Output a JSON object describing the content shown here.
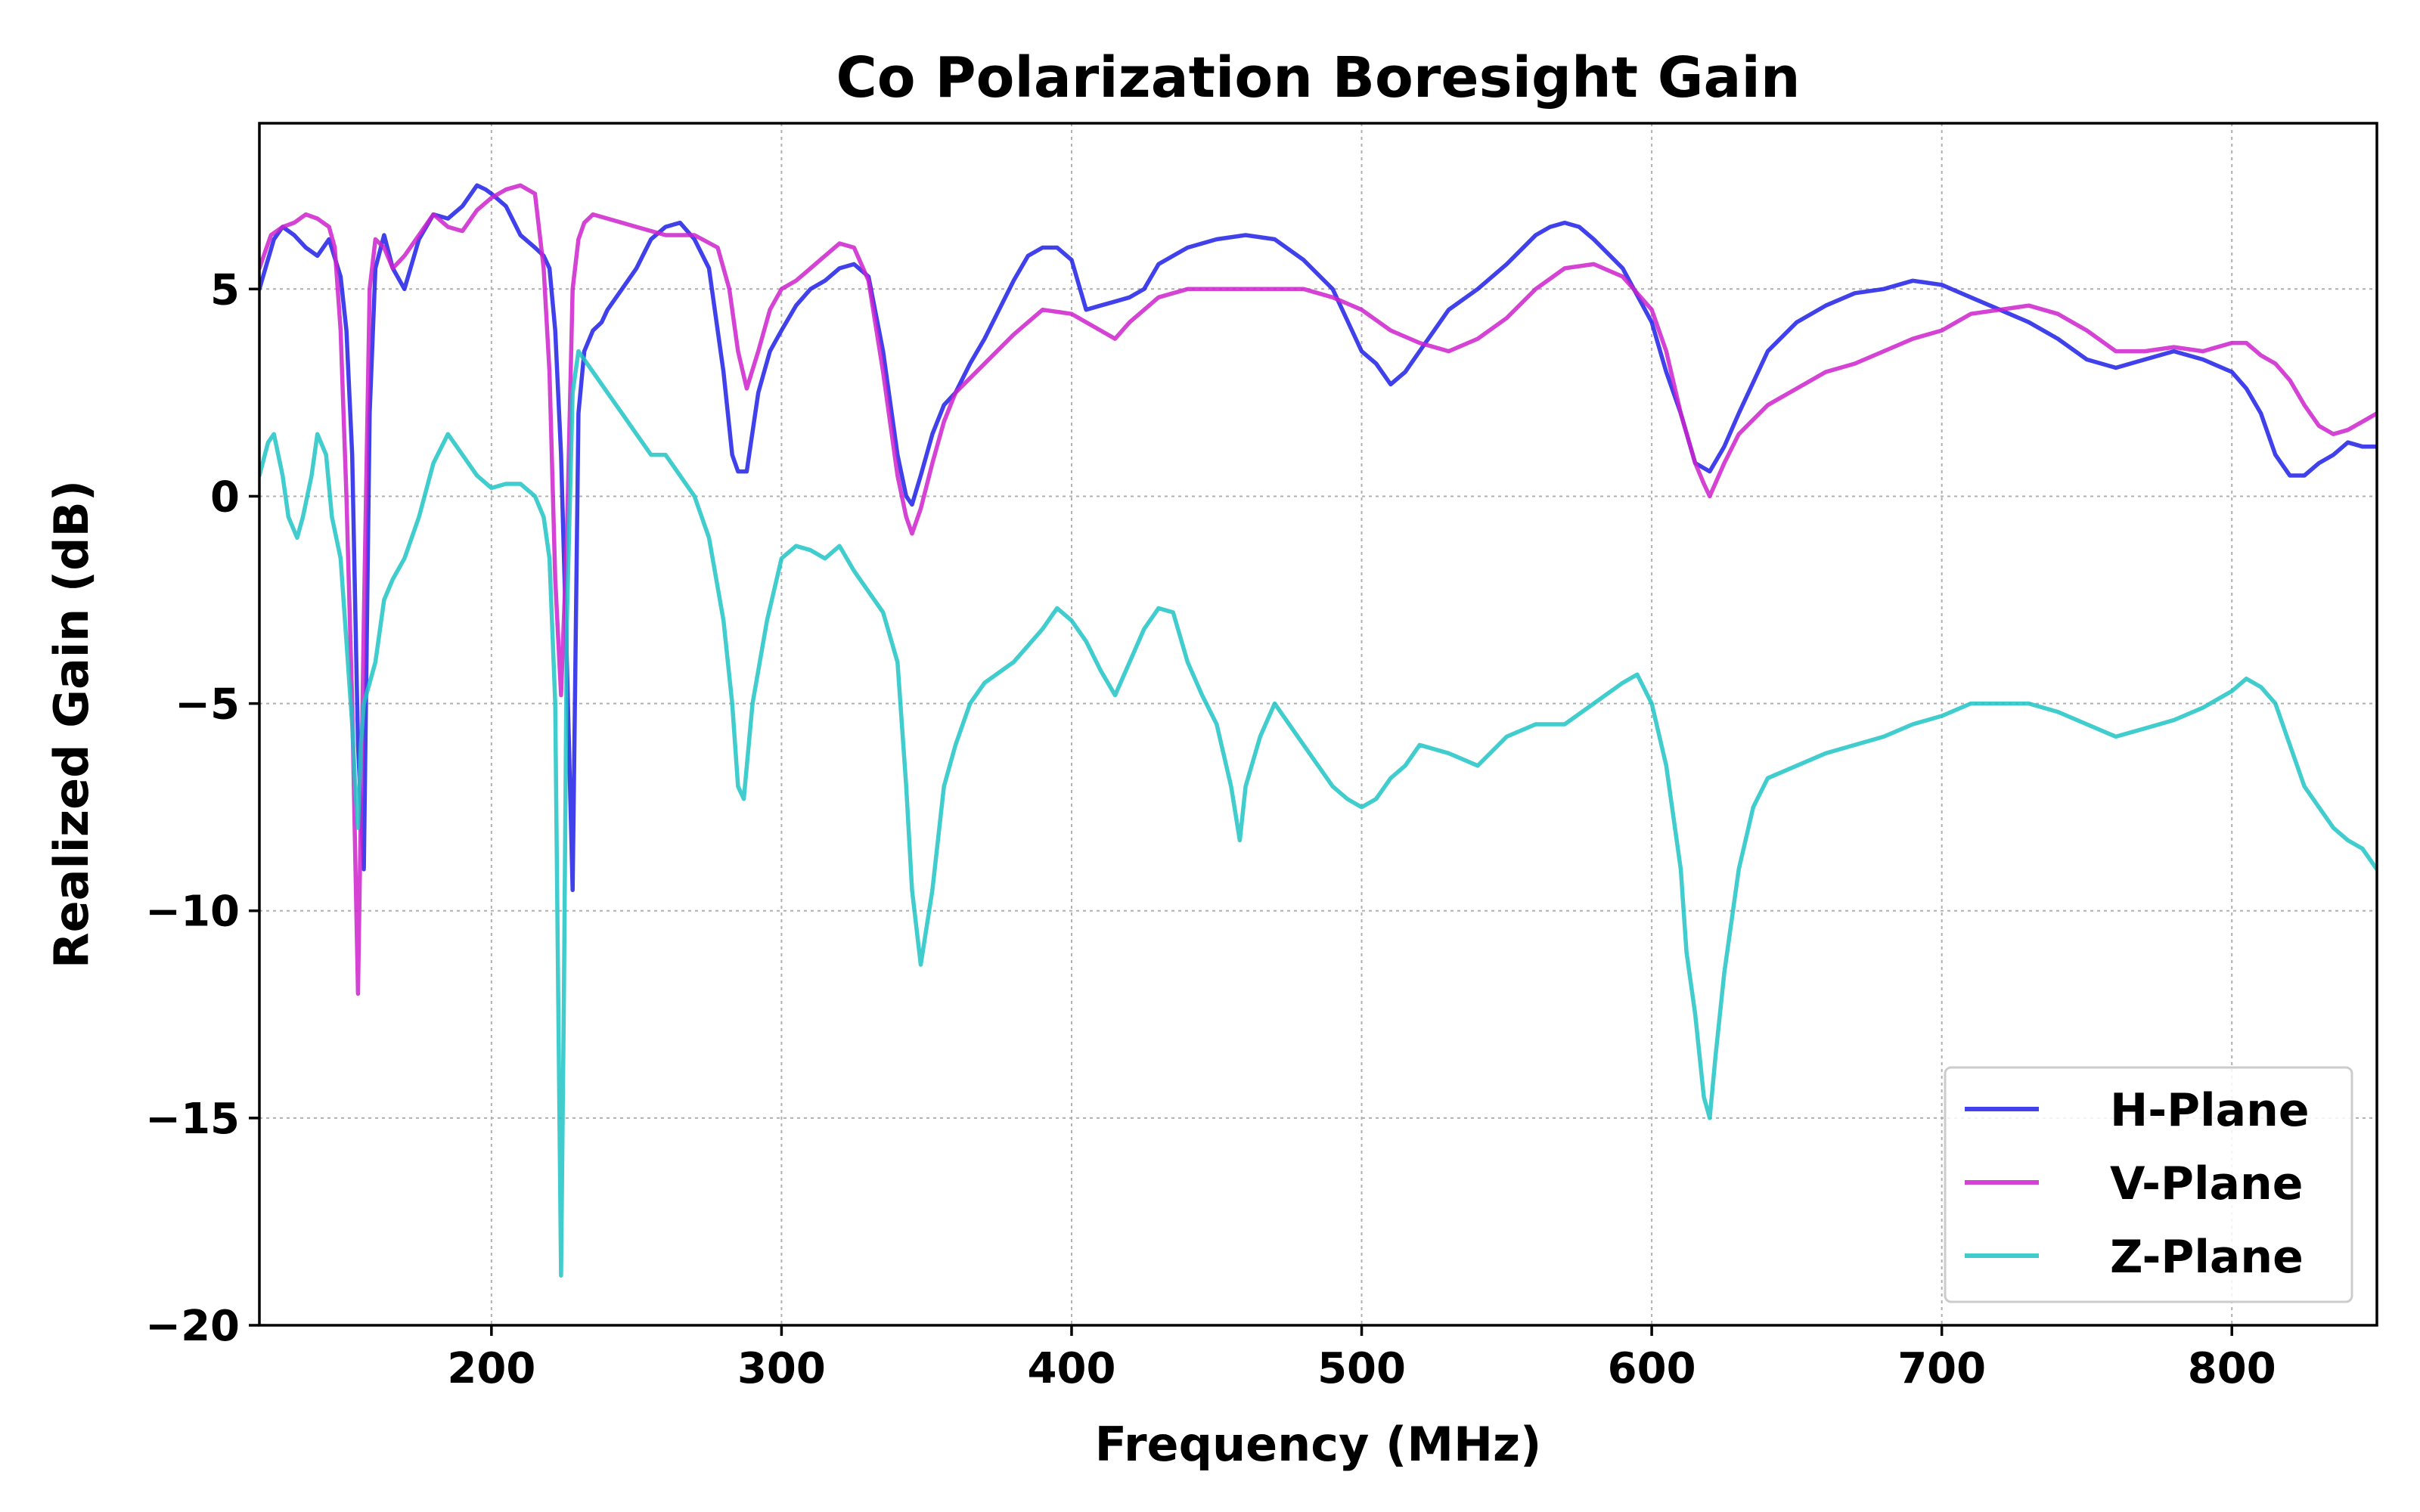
{
  "chart_data": {
    "type": "line",
    "title": "Co Polarization Boresight Gain",
    "xlabel": "Frequency (MHz)",
    "ylabel": "Realized Gain (dB)",
    "xlim": [
      120,
      850
    ],
    "ylim": [
      -20,
      9
    ],
    "xticks": [
      200,
      300,
      400,
      500,
      600,
      700,
      800
    ],
    "xtick_labels": [
      "200",
      "300",
      "400",
      "500",
      "600",
      "700",
      "800"
    ],
    "yticks": [
      5,
      0,
      -5,
      -10,
      -15,
      -20
    ],
    "ytick_labels": [
      "5",
      "0",
      "−5",
      "−10",
      "−15",
      "−20"
    ],
    "grid": true,
    "legend_position": "bottom-right",
    "series": [
      {
        "name": "H-Plane",
        "color": "#2020e8",
        "x": [
          120,
          125,
          128,
          132,
          136,
          140,
          144,
          148,
          150,
          152,
          154,
          156,
          158,
          160,
          163,
          166,
          170,
          175,
          180,
          185,
          190,
          195,
          198,
          200,
          205,
          210,
          215,
          218,
          220,
          222,
          224,
          226,
          228,
          230,
          232,
          235,
          238,
          240,
          245,
          250,
          255,
          260,
          265,
          270,
          275,
          280,
          283,
          285,
          288,
          292,
          296,
          300,
          305,
          310,
          315,
          320,
          325,
          330,
          335,
          340,
          343,
          345,
          348,
          352,
          356,
          360,
          365,
          370,
          375,
          380,
          385,
          390,
          395,
          400,
          405,
          410,
          415,
          420,
          425,
          430,
          435,
          440,
          450,
          460,
          470,
          480,
          490,
          500,
          505,
          510,
          515,
          520,
          530,
          540,
          550,
          560,
          565,
          570,
          575,
          580,
          590,
          600,
          605,
          610,
          615,
          620,
          625,
          630,
          640,
          650,
          660,
          670,
          680,
          690,
          700,
          710,
          720,
          730,
          740,
          750,
          760,
          770,
          780,
          790,
          800,
          805,
          810,
          815,
          820,
          825,
          830,
          835,
          840,
          845,
          850
        ],
        "y": [
          5.0,
          6.2,
          6.5,
          6.3,
          6.0,
          5.8,
          6.2,
          5.3,
          4.0,
          1.0,
          -6.0,
          -9.0,
          2.0,
          5.5,
          6.3,
          5.5,
          5.0,
          6.2,
          6.8,
          6.7,
          7.0,
          7.5,
          7.4,
          7.3,
          7.0,
          6.3,
          6.0,
          5.8,
          5.5,
          4.0,
          1.0,
          -4.0,
          -9.5,
          2.0,
          3.5,
          4.0,
          4.2,
          4.5,
          5.0,
          5.5,
          6.2,
          6.5,
          6.6,
          6.2,
          5.5,
          3.0,
          1.0,
          0.6,
          0.6,
          2.5,
          3.5,
          4.0,
          4.6,
          5.0,
          5.2,
          5.5,
          5.6,
          5.3,
          3.5,
          1.0,
          0.0,
          -0.2,
          0.5,
          1.5,
          2.2,
          2.5,
          3.2,
          3.8,
          4.5,
          5.2,
          5.8,
          6.0,
          6.0,
          5.7,
          4.5,
          4.6,
          4.7,
          4.8,
          5.0,
          5.6,
          5.8,
          6.0,
          6.2,
          6.3,
          6.2,
          5.7,
          5.0,
          3.5,
          3.2,
          2.7,
          3.0,
          3.5,
          4.5,
          5.0,
          5.6,
          6.3,
          6.5,
          6.6,
          6.5,
          6.2,
          5.5,
          4.2,
          3.0,
          2.0,
          0.8,
          0.6,
          1.2,
          2.0,
          3.5,
          4.2,
          4.6,
          4.9,
          5.0,
          5.2,
          5.1,
          4.8,
          4.5,
          4.2,
          3.8,
          3.3,
          3.1,
          3.3,
          3.5,
          3.3,
          3.0,
          2.6,
          2.0,
          1.0,
          0.5,
          0.5,
          0.8,
          1.0,
          1.3,
          1.2,
          1.2
        ]
      },
      {
        "name": "V-Plane",
        "color": "#cc22cc",
        "x": [
          120,
          124,
          128,
          132,
          136,
          140,
          144,
          146,
          148,
          150,
          152,
          154,
          156,
          158,
          160,
          163,
          166,
          170,
          175,
          180,
          185,
          190,
          195,
          200,
          205,
          210,
          215,
          218,
          220,
          222,
          224,
          226,
          228,
          230,
          232,
          235,
          240,
          245,
          250,
          260,
          270,
          278,
          282,
          285,
          288,
          292,
          296,
          300,
          305,
          310,
          315,
          320,
          325,
          330,
          335,
          340,
          343,
          345,
          348,
          352,
          356,
          360,
          370,
          380,
          390,
          400,
          405,
          410,
          415,
          420,
          430,
          440,
          450,
          460,
          470,
          480,
          490,
          500,
          510,
          520,
          530,
          540,
          550,
          560,
          570,
          580,
          590,
          600,
          605,
          610,
          615,
          618,
          620,
          625,
          630,
          640,
          650,
          660,
          670,
          680,
          690,
          700,
          710,
          720,
          730,
          740,
          750,
          760,
          770,
          780,
          790,
          800,
          805,
          810,
          815,
          820,
          825,
          830,
          835,
          840,
          845,
          850
        ],
        "y": [
          5.5,
          6.3,
          6.5,
          6.6,
          6.8,
          6.7,
          6.5,
          6.0,
          4.0,
          0.0,
          -5.0,
          -12.0,
          -3.0,
          5.0,
          6.2,
          6.0,
          5.5,
          5.8,
          6.3,
          6.8,
          6.5,
          6.4,
          6.9,
          7.2,
          7.4,
          7.5,
          7.3,
          5.5,
          3.0,
          -2.0,
          -4.8,
          -1.0,
          5.0,
          6.2,
          6.6,
          6.8,
          6.7,
          6.6,
          6.5,
          6.3,
          6.3,
          6.0,
          5.0,
          3.5,
          2.6,
          3.5,
          4.5,
          5.0,
          5.2,
          5.5,
          5.8,
          6.1,
          6.0,
          5.2,
          3.0,
          0.5,
          -0.5,
          -0.9,
          -0.3,
          0.8,
          1.8,
          2.5,
          3.2,
          3.9,
          4.5,
          4.4,
          4.2,
          4.0,
          3.8,
          4.2,
          4.8,
          5.0,
          5.0,
          5.0,
          5.0,
          5.0,
          4.8,
          4.5,
          4.0,
          3.7,
          3.5,
          3.8,
          4.3,
          5.0,
          5.5,
          5.6,
          5.3,
          4.5,
          3.5,
          2.0,
          0.8,
          0.3,
          0.0,
          0.8,
          1.5,
          2.2,
          2.6,
          3.0,
          3.2,
          3.5,
          3.8,
          4.0,
          4.4,
          4.5,
          4.6,
          4.4,
          4.0,
          3.5,
          3.5,
          3.6,
          3.5,
          3.7,
          3.7,
          3.4,
          3.2,
          2.8,
          2.2,
          1.7,
          1.5,
          1.6,
          1.8,
          2.0
        ]
      },
      {
        "name": "Z-Plane",
        "color": "#20c4c4",
        "x": [
          120,
          123,
          125,
          128,
          130,
          133,
          135,
          138,
          140,
          143,
          145,
          148,
          150,
          152,
          153,
          154,
          155,
          156,
          158,
          160,
          163,
          166,
          170,
          175,
          180,
          185,
          190,
          195,
          200,
          205,
          210,
          215,
          218,
          220,
          222,
          223,
          224,
          225,
          226,
          228,
          230,
          235,
          240,
          245,
          250,
          255,
          260,
          265,
          270,
          275,
          280,
          283,
          285,
          287,
          290,
          295,
          300,
          305,
          310,
          315,
          320,
          325,
          330,
          335,
          340,
          343,
          345,
          348,
          352,
          356,
          360,
          365,
          370,
          380,
          390,
          395,
          400,
          405,
          410,
          415,
          420,
          425,
          430,
          435,
          440,
          445,
          450,
          455,
          458,
          460,
          465,
          470,
          475,
          480,
          485,
          490,
          495,
          500,
          505,
          510,
          515,
          520,
          530,
          540,
          550,
          560,
          570,
          580,
          590,
          595,
          600,
          605,
          610,
          612,
          615,
          618,
          620,
          622,
          625,
          630,
          635,
          640,
          650,
          660,
          670,
          680,
          690,
          700,
          710,
          720,
          730,
          740,
          750,
          760,
          770,
          780,
          790,
          800,
          805,
          810,
          815,
          820,
          825,
          830,
          835,
          840,
          845,
          850
        ],
        "y": [
          0.5,
          1.3,
          1.5,
          0.5,
          -0.5,
          -1.0,
          -0.5,
          0.5,
          1.5,
          1.0,
          -0.5,
          -1.5,
          -3.5,
          -5.5,
          -7.0,
          -8.0,
          -6.0,
          -5.0,
          -4.5,
          -4.0,
          -2.5,
          -2.0,
          -1.5,
          -0.5,
          0.8,
          1.5,
          1.0,
          0.5,
          0.2,
          0.3,
          0.3,
          0.0,
          -0.5,
          -1.5,
          -5.0,
          -12.0,
          -18.8,
          -12.0,
          -3.0,
          2.5,
          3.5,
          3.0,
          2.5,
          2.0,
          1.5,
          1.0,
          1.0,
          0.5,
          0.0,
          -1.0,
          -3.0,
          -5.0,
          -7.0,
          -7.3,
          -5.0,
          -3.0,
          -1.5,
          -1.2,
          -1.3,
          -1.5,
          -1.2,
          -1.8,
          -2.3,
          -2.8,
          -4.0,
          -7.0,
          -9.5,
          -11.3,
          -9.5,
          -7.0,
          -6.0,
          -5.0,
          -4.5,
          -4.0,
          -3.2,
          -2.7,
          -3.0,
          -3.5,
          -4.2,
          -4.8,
          -4.0,
          -3.2,
          -2.7,
          -2.8,
          -4.0,
          -4.8,
          -5.5,
          -7.0,
          -8.3,
          -7.0,
          -5.8,
          -5.0,
          -5.5,
          -6.0,
          -6.5,
          -7.0,
          -7.3,
          -7.5,
          -7.3,
          -6.8,
          -6.5,
          -6.0,
          -6.2,
          -6.5,
          -5.8,
          -5.5,
          -5.5,
          -5.0,
          -4.5,
          -4.3,
          -5.0,
          -6.5,
          -9.0,
          -11.0,
          -12.5,
          -14.5,
          -15.0,
          -13.5,
          -11.5,
          -9.0,
          -7.5,
          -6.8,
          -6.5,
          -6.2,
          -6.0,
          -5.8,
          -5.5,
          -5.3,
          -5.0,
          -5.0,
          -5.0,
          -5.2,
          -5.5,
          -5.8,
          -5.6,
          -5.4,
          -5.1,
          -4.7,
          -4.4,
          -4.6,
          -5.0,
          -6.0,
          -7.0,
          -7.5,
          -8.0,
          -8.3,
          -8.5,
          -9.0
        ]
      }
    ]
  }
}
